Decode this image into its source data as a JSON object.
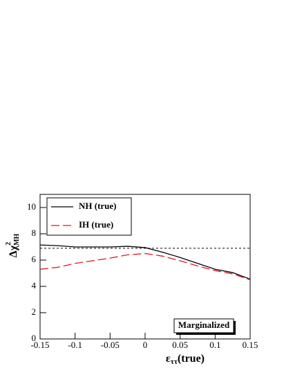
{
  "chart_data": {
    "type": "line",
    "x_label_parts": [
      "ε",
      "ττ",
      "(true)"
    ],
    "y_label_parts": [
      "Δχ",
      "2",
      "MH"
    ],
    "annotation": "Marginalized",
    "x": [
      -0.15,
      -0.125,
      -0.1,
      -0.075,
      -0.05,
      -0.025,
      0,
      0.025,
      0.05,
      0.075,
      0.1,
      0.125,
      0.15
    ],
    "series": [
      {
        "name": "NH (true)",
        "color": "#000000",
        "dash": false,
        "values": [
          7.15,
          7.1,
          7.0,
          7.0,
          7.0,
          7.05,
          6.95,
          6.6,
          6.2,
          5.75,
          5.3,
          5.05,
          4.55
        ]
      },
      {
        "name": "IH (true)",
        "color": "#e8141c",
        "dash": true,
        "values": [
          5.3,
          5.45,
          5.75,
          5.95,
          6.15,
          6.4,
          6.5,
          6.3,
          5.95,
          5.55,
          5.2,
          4.95,
          4.5
        ]
      }
    ],
    "reference_line": 6.9,
    "xlim": [
      -0.15,
      0.15
    ],
    "xticks": [
      -0.15,
      -0.1,
      -0.05,
      0,
      0.05,
      0.1,
      0.15
    ],
    "ylim": [
      0,
      11
    ],
    "yticks": [
      0,
      2,
      4,
      6,
      8,
      10
    ],
    "legend": "top-left"
  }
}
